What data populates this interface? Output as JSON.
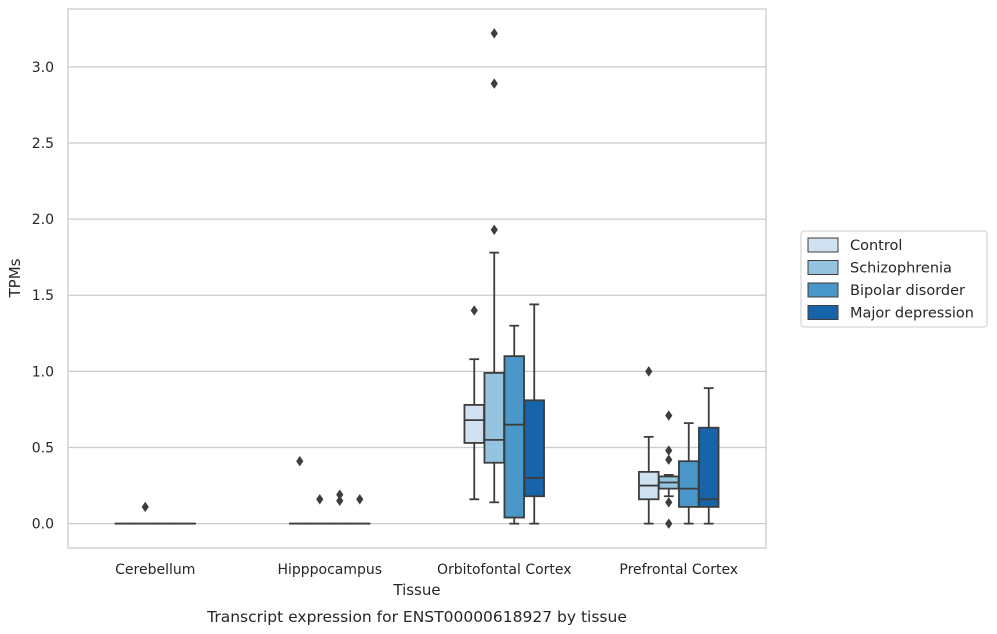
{
  "chart_data": {
    "type": "boxplot",
    "caption": "Transcript expression for ENST00000618927 by tissue",
    "xlabel": "Tissue",
    "ylabel": "TPMs",
    "ylim": [
      -0.16,
      3.38
    ],
    "yticks": [
      "0.0",
      "0.5",
      "1.0",
      "1.5",
      "2.0",
      "2.5",
      "3.0"
    ],
    "grid": "horizontal",
    "legend_position": "right",
    "categories": [
      "Cerebellum",
      "Hipppocampus",
      "Orbitofontal Cortex",
      "Prefrontal Cortex"
    ],
    "series": [
      {
        "name": "Control",
        "color": "#d0e1f2",
        "boxes": [
          {
            "category": "Cerebellum",
            "whislo": 0,
            "q1": 0,
            "med": 0,
            "q3": 0,
            "whishi": 0,
            "fliers": []
          },
          {
            "category": "Hipppocampus",
            "whislo": 0,
            "q1": 0,
            "med": 0,
            "q3": 0,
            "whishi": 0,
            "fliers": [
              0.41
            ]
          },
          {
            "category": "Orbitofontal Cortex",
            "whislo": 0.16,
            "q1": 0.53,
            "med": 0.68,
            "q3": 0.78,
            "whishi": 1.08,
            "fliers": [
              1.4
            ]
          },
          {
            "category": "Prefrontal Cortex",
            "whislo": 0,
            "q1": 0.16,
            "med": 0.25,
            "q3": 0.34,
            "whishi": 0.57,
            "fliers": [
              1.0
            ]
          }
        ]
      },
      {
        "name": "Schizophrenia",
        "color": "#94c4df",
        "boxes": [
          {
            "category": "Cerebellum",
            "whislo": 0,
            "q1": 0,
            "med": 0,
            "q3": 0,
            "whishi": 0,
            "fliers": [
              0.11
            ]
          },
          {
            "category": "Hipppocampus",
            "whislo": 0,
            "q1": 0,
            "med": 0,
            "q3": 0,
            "whishi": 0,
            "fliers": [
              0.16
            ]
          },
          {
            "category": "Orbitofontal Cortex",
            "whislo": 0.14,
            "q1": 0.4,
            "med": 0.55,
            "q3": 0.99,
            "whishi": 1.78,
            "fliers": [
              1.93,
              2.89,
              3.22
            ]
          },
          {
            "category": "Prefrontal Cortex",
            "whislo": 0.18,
            "q1": 0.23,
            "med": 0.27,
            "q3": 0.31,
            "whishi": 0.32,
            "fliers": [
              0.71,
              0.48,
              0.42,
              0.14,
              0.0
            ]
          }
        ]
      },
      {
        "name": "Bipolar disorder",
        "color": "#4a98c9",
        "boxes": [
          {
            "category": "Cerebellum",
            "whislo": 0,
            "q1": 0,
            "med": 0,
            "q3": 0,
            "whishi": 0,
            "fliers": []
          },
          {
            "category": "Hipppocampus",
            "whislo": 0,
            "q1": 0,
            "med": 0,
            "q3": 0,
            "whishi": 0,
            "fliers": [
              0.15,
              0.19
            ]
          },
          {
            "category": "Orbitofontal Cortex",
            "whislo": 0,
            "q1": 0.04,
            "med": 0.65,
            "q3": 1.1,
            "whishi": 1.3,
            "fliers": []
          },
          {
            "category": "Prefrontal Cortex",
            "whislo": 0,
            "q1": 0.11,
            "med": 0.23,
            "q3": 0.41,
            "whishi": 0.66,
            "fliers": []
          }
        ]
      },
      {
        "name": "Major depression",
        "color": "#1764ab",
        "boxes": [
          {
            "category": "Cerebellum",
            "whislo": 0,
            "q1": 0,
            "med": 0,
            "q3": 0,
            "whishi": 0,
            "fliers": []
          },
          {
            "category": "Hipppocampus",
            "whislo": 0,
            "q1": 0,
            "med": 0,
            "q3": 0,
            "whishi": 0,
            "fliers": [
              0.16
            ]
          },
          {
            "category": "Orbitofontal Cortex",
            "whislo": 0,
            "q1": 0.18,
            "med": 0.3,
            "q3": 0.81,
            "whishi": 1.44,
            "fliers": []
          },
          {
            "category": "Prefrontal Cortex",
            "whislo": 0,
            "q1": 0.11,
            "med": 0.16,
            "q3": 0.63,
            "whishi": 0.89,
            "fliers": []
          }
        ]
      }
    ]
  }
}
